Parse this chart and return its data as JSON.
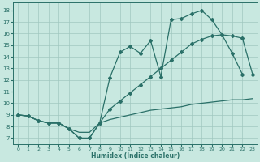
{
  "bg_color": "#c8e8e0",
  "grid_color": "#a0c8c0",
  "line_color": "#2a7068",
  "xlabel": "Humidex (Indice chaleur)",
  "xlim": [
    -0.5,
    23.5
  ],
  "ylim": [
    6.5,
    18.7
  ],
  "xticks": [
    0,
    1,
    2,
    3,
    4,
    5,
    6,
    7,
    8,
    9,
    10,
    11,
    12,
    13,
    14,
    15,
    16,
    17,
    18,
    19,
    20,
    21,
    22,
    23
  ],
  "yticks": [
    7,
    8,
    9,
    10,
    11,
    12,
    13,
    14,
    15,
    16,
    17,
    18
  ],
  "line1_x": [
    0,
    1,
    2,
    3,
    4,
    5,
    6,
    7,
    8,
    9,
    10,
    11,
    12,
    13,
    14,
    15,
    16,
    17,
    18,
    19,
    20,
    21,
    22
  ],
  "line1_y": [
    9.0,
    8.9,
    8.5,
    8.3,
    8.3,
    7.8,
    7.0,
    7.0,
    8.3,
    12.2,
    14.4,
    14.9,
    14.3,
    15.4,
    12.3,
    17.2,
    17.3,
    17.7,
    18.0,
    17.2,
    15.9,
    14.3,
    12.5
  ],
  "line2_x": [
    0,
    1,
    2,
    3,
    4,
    5,
    6,
    7,
    8,
    9,
    10,
    11,
    12,
    13,
    14,
    15,
    16,
    17,
    18,
    19,
    20,
    21,
    22,
    23
  ],
  "line2_y": [
    9.0,
    8.9,
    8.5,
    8.3,
    8.3,
    7.8,
    7.0,
    7.0,
    8.3,
    9.5,
    10.2,
    10.9,
    11.6,
    12.3,
    13.0,
    13.7,
    14.4,
    15.1,
    15.5,
    15.8,
    15.9,
    15.8,
    15.6,
    12.5
  ],
  "line3_x": [
    0,
    1,
    2,
    3,
    4,
    5,
    6,
    7,
    8,
    9,
    10,
    11,
    12,
    13,
    14,
    15,
    16,
    17,
    18,
    19,
    20,
    21,
    22,
    23
  ],
  "line3_y": [
    9.0,
    8.9,
    8.5,
    8.3,
    8.3,
    7.8,
    7.5,
    7.5,
    8.3,
    8.6,
    8.8,
    9.0,
    9.2,
    9.4,
    9.5,
    9.6,
    9.7,
    9.9,
    10.0,
    10.1,
    10.2,
    10.3,
    10.3,
    10.4
  ]
}
